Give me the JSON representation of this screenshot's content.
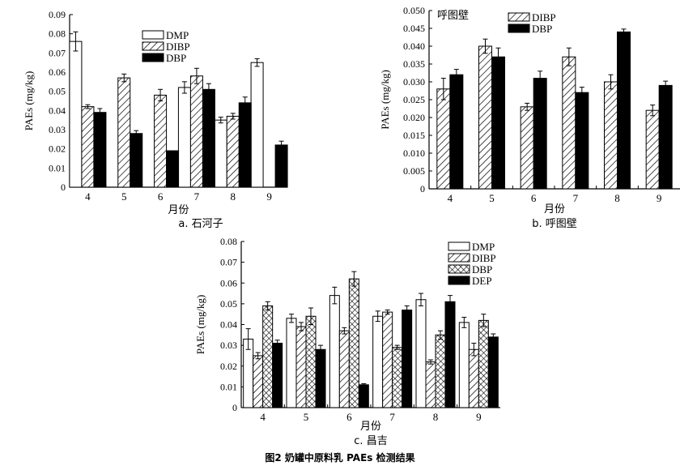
{
  "figure_caption": "图2    奶罐中原料乳 PAEs 检测结果",
  "chart_data": [
    {
      "type": "bar",
      "title": "",
      "panel_label": "a. 石河子",
      "xlabel": "月份",
      "ylabel": "PAEs (mg/kg)",
      "categories": [
        "4",
        "5",
        "6",
        "7",
        "8",
        "9"
      ],
      "ylim": [
        0,
        0.09
      ],
      "yticks": [
        "0",
        "0.01",
        "0.02",
        "0.03",
        "0.04",
        "0.05",
        "0.06",
        "0.07",
        "0.08",
        "0.09"
      ],
      "legend_position": "top-center",
      "series": [
        {
          "name": "DMP",
          "values": [
            0.076,
            0,
            0,
            0.052,
            0.035,
            0.065
          ],
          "errors": [
            0.005,
            0,
            0,
            0.003,
            0.0015,
            0.002
          ]
        },
        {
          "name": "DIBP",
          "values": [
            0.042,
            0.057,
            0.048,
            0.058,
            0.037,
            0
          ],
          "errors": [
            0.001,
            0.002,
            0.003,
            0.004,
            0.0015,
            0
          ]
        },
        {
          "name": "DBP",
          "values": [
            0.039,
            0.028,
            0.019,
            0.051,
            0.044,
            0.022
          ],
          "errors": [
            0.002,
            0.0015,
            0,
            0.003,
            0.003,
            0.002
          ]
        }
      ]
    },
    {
      "type": "bar",
      "title": "",
      "panel_label": "b. 呼图壁",
      "inner_label": "呼图壁",
      "xlabel": "月份",
      "ylabel": "PAEs (mg/kg)",
      "categories": [
        "4",
        "5",
        "6",
        "7",
        "8",
        "9"
      ],
      "ylim": [
        0,
        0.05
      ],
      "yticks": [
        "0",
        "0.005",
        "0.010",
        "0.015",
        "0.020",
        "0.025",
        "0.030",
        "0.035",
        "0.040",
        "0.045",
        "0.050"
      ],
      "legend_position": "top-center",
      "series": [
        {
          "name": "DIBP",
          "values": [
            0.028,
            0.04,
            0.023,
            0.037,
            0.03,
            0.022
          ],
          "errors": [
            0.003,
            0.002,
            0.001,
            0.0025,
            0.002,
            0.0015
          ]
        },
        {
          "name": "DBP",
          "values": [
            0.032,
            0.037,
            0.031,
            0.027,
            0.044,
            0.029
          ],
          "errors": [
            0.0015,
            0.0025,
            0.002,
            0.0015,
            0.0008,
            0.0012
          ]
        }
      ]
    },
    {
      "type": "bar",
      "title": "",
      "panel_label": "c. 昌吉",
      "xlabel": "月份",
      "ylabel": "PAEs (mg/kg)",
      "categories": [
        "4",
        "5",
        "6",
        "7",
        "8",
        "9"
      ],
      "ylim": [
        0,
        0.08
      ],
      "yticks": [
        "0",
        "0.01",
        "0.02",
        "0.03",
        "0.04",
        "0.05",
        "0.06",
        "0.07",
        "0.08"
      ],
      "legend_position": "top-right",
      "series": [
        {
          "name": "DMP",
          "values": [
            0.033,
            0.043,
            0.054,
            0.044,
            0.052,
            0.041
          ],
          "errors": [
            0.005,
            0.002,
            0.004,
            0.0025,
            0.003,
            0.0025
          ]
        },
        {
          "name": "DIBP",
          "values": [
            0.025,
            0.039,
            0.037,
            0.046,
            0.022,
            0.028
          ],
          "errors": [
            0.0015,
            0.002,
            0.0015,
            0.001,
            0.001,
            0.003
          ]
        },
        {
          "name": "DBP",
          "values": [
            0.049,
            0.044,
            0.062,
            0.029,
            0.035,
            0.042
          ],
          "errors": [
            0.002,
            0.004,
            0.0035,
            0.001,
            0.002,
            0.003
          ]
        },
        {
          "name": "DEP",
          "values": [
            0.031,
            0.028,
            0.011,
            0.047,
            0.051,
            0.034
          ],
          "errors": [
            0.0015,
            0.002,
            0.0005,
            0.002,
            0.003,
            0.0015
          ]
        }
      ]
    }
  ]
}
